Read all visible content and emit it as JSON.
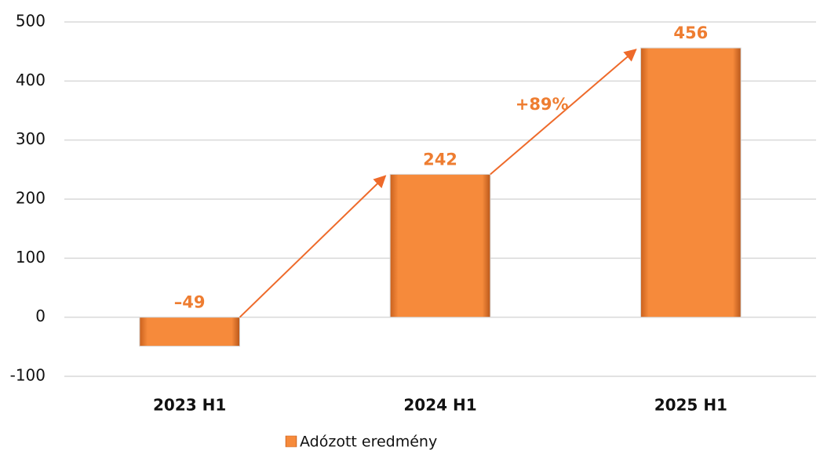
{
  "chart_data": {
    "type": "bar",
    "categories": [
      "2023 H1",
      "2024 H1",
      "2025 H1"
    ],
    "series": [
      {
        "name": "Adózott eredmény",
        "color": "#f68a3b",
        "values": [
          -49,
          242,
          456
        ],
        "value_labels": [
          "–49",
          "242",
          "456"
        ]
      }
    ],
    "annotations": [
      "+89%"
    ],
    "ylim": [
      -100,
      500
    ],
    "yticks": [
      -100,
      0,
      100,
      200,
      300,
      400,
      500
    ],
    "grid": true,
    "legend": "bottom"
  }
}
